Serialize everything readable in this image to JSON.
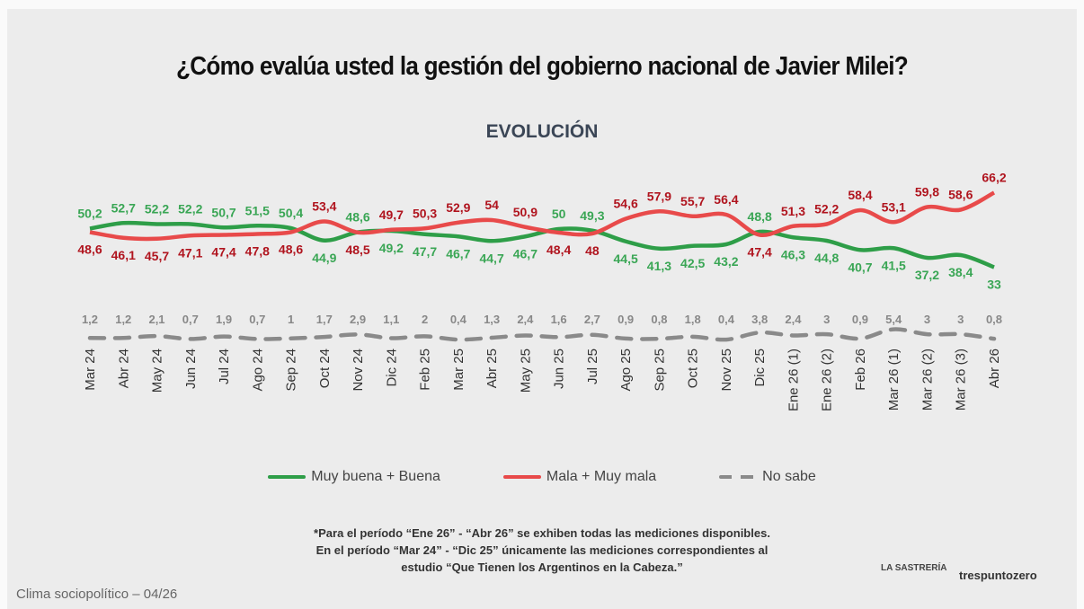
{
  "title": "¿Cómo evalúa usted la gestión del gobierno nacional de Javier Milei?",
  "subtitle": "EVOLUCIÓN",
  "chart_data": {
    "type": "line",
    "categories": [
      "Mar 24",
      "Abr 24",
      "May 24",
      "Jun 24",
      "Jul 24",
      "Ago 24",
      "Sep 24",
      "Oct 24",
      "Nov 24",
      "Dic 24",
      "Feb 25",
      "Mar 25",
      "Abr 25",
      "May 25",
      "Jun 25",
      "Jul 25",
      "Ago 25",
      "Sep 25",
      "Oct 25",
      "Nov 25",
      "Dic 25",
      "Ene 26 (1)",
      "Ene 26 (2)",
      "Feb 26",
      "Mar 26 (1)",
      "Mar 26 (2)",
      "Mar 26 (3)",
      "Abr 26"
    ],
    "series": [
      {
        "name": "Muy buena + Buena",
        "color": "#2e9e48",
        "style": "solid",
        "values": [
          50.2,
          52.7,
          52.2,
          52.2,
          50.7,
          51.5,
          50.4,
          44.9,
          48.6,
          49.2,
          47.7,
          46.7,
          44.7,
          46.7,
          50,
          49.3,
          44.5,
          41.3,
          42.5,
          43.2,
          48.8,
          46.3,
          44.8,
          40.7,
          41.5,
          37.2,
          38.4,
          33
        ]
      },
      {
        "name": "Mala + Muy mala",
        "color": "#e84a4a",
        "label_color": "#b0141e",
        "style": "solid",
        "values": [
          48.6,
          46.1,
          45.7,
          47.1,
          47.4,
          47.8,
          48.6,
          53.4,
          48.5,
          49.7,
          50.3,
          52.9,
          54,
          50.9,
          48.4,
          48,
          54.6,
          57.9,
          55.7,
          56.4,
          47.4,
          51.3,
          52.2,
          58.4,
          53.1,
          59.8,
          58.6,
          66.2
        ]
      },
      {
        "name": "No sabe",
        "color": "#8a8a8a",
        "style": "dashed",
        "values": [
          1.2,
          1.2,
          2.1,
          0.7,
          1.9,
          0.7,
          1,
          1.7,
          2.9,
          1.1,
          2,
          0.4,
          1.3,
          2.4,
          1.6,
          2.7,
          0.9,
          0.8,
          1.8,
          0.4,
          3.8,
          2.4,
          3,
          0.9,
          5.4,
          3,
          3,
          0.8
        ]
      }
    ],
    "legend_position": "bottom",
    "grid": false,
    "decimal_separator": ","
  },
  "note": {
    "line1": "*Para el período “Ene 26” - “Abr 26” se exhiben todas las mediciones disponibles.",
    "line2": "En el período “Mar 24” -  “Dic 25” únicamente las mediciones correspondientes al",
    "line3": "estudio “Que Tienen los Argentinos en la Cabeza.”"
  },
  "footer": "Clima sociopolítico – 04/26",
  "logos": {
    "left": "LA SASTRERÍA",
    "right": "trespuntozero"
  }
}
